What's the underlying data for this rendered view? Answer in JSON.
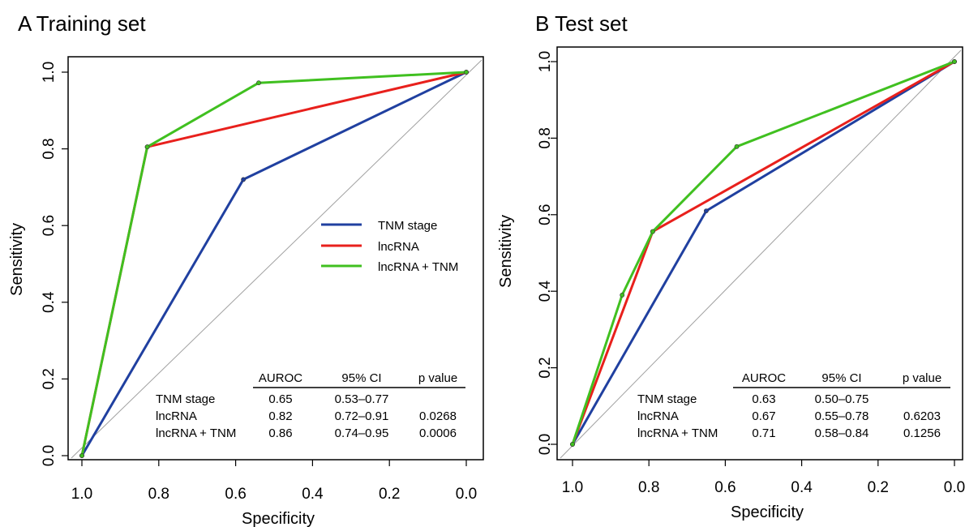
{
  "chart_data": [
    {
      "type": "line",
      "title": "A Training set",
      "xlabel": "Specificity",
      "ylabel": "Sensitivity",
      "xlim": [
        1.0,
        0.0
      ],
      "ylim": [
        0.0,
        1.0
      ],
      "x_ticks": [
        "1.0",
        "0.8",
        "0.6",
        "0.4",
        "0.2",
        "0.0"
      ],
      "y_ticks": [
        "0.0",
        "0.2",
        "0.4",
        "0.6",
        "0.8",
        "1.0"
      ],
      "reference_line": "diagonal",
      "legend": {
        "placement": "right-middle"
      },
      "series": [
        {
          "name": "TNM stage",
          "color": "#2040a0",
          "x": [
            1.0,
            0.58,
            0.0
          ],
          "y": [
            0.0,
            0.72,
            1.0
          ]
        },
        {
          "name": "lncRNA",
          "color": "#e8201c",
          "x": [
            1.0,
            0.83,
            0.0
          ],
          "y": [
            0.0,
            0.805,
            1.0
          ]
        },
        {
          "name": "lncRNA + TNM",
          "color": "#40c020",
          "x": [
            1.0,
            0.83,
            0.54,
            0.0
          ],
          "y": [
            0.0,
            0.805,
            0.972,
            1.0
          ]
        }
      ],
      "table": {
        "columns": [
          "AUROC",
          "95% CI",
          "p value"
        ],
        "rows": [
          {
            "label": "TNM stage",
            "auroc": "0.65",
            "ci": "0.53–0.77",
            "p": ""
          },
          {
            "label": "lncRNA",
            "auroc": "0.82",
            "ci": "0.72–0.91",
            "p": "0.0268"
          },
          {
            "label": "lncRNA + TNM",
            "auroc": "0.86",
            "ci": "0.74–0.95",
            "p": "0.0006"
          }
        ]
      }
    },
    {
      "type": "line",
      "title": "B Test set",
      "xlabel": "Specificity",
      "ylabel": "Sensitivity",
      "xlim": [
        1.0,
        0.0
      ],
      "ylim": [
        0.0,
        1.0
      ],
      "x_ticks": [
        "1.0",
        "0.8",
        "0.6",
        "0.4",
        "0.2",
        "0.0"
      ],
      "y_ticks": [
        "0.0",
        "0.2",
        "0.4",
        "0.6",
        "0.8",
        "1.0"
      ],
      "reference_line": "diagonal",
      "series": [
        {
          "name": "TNM stage",
          "color": "#2040a0",
          "x": [
            1.0,
            0.65,
            0.0
          ],
          "y": [
            0.0,
            0.61,
            1.0
          ]
        },
        {
          "name": "lncRNA",
          "color": "#e8201c",
          "x": [
            1.0,
            0.79,
            0.0
          ],
          "y": [
            0.0,
            0.556,
            1.0
          ]
        },
        {
          "name": "lncRNA + TNM",
          "color": "#40c020",
          "x": [
            1.0,
            0.87,
            0.79,
            0.57,
            0.0
          ],
          "y": [
            0.0,
            0.39,
            0.556,
            0.778,
            1.0
          ]
        }
      ],
      "table": {
        "columns": [
          "AUROC",
          "95% CI",
          "p value"
        ],
        "rows": [
          {
            "label": "TNM stage",
            "auroc": "0.63",
            "ci": "0.50–0.75",
            "p": ""
          },
          {
            "label": "lncRNA",
            "auroc": "0.67",
            "ci": "0.55–0.78",
            "p": "0.6203"
          },
          {
            "label": "lncRNA + TNM",
            "auroc": "0.71",
            "ci": "0.58–0.84",
            "p": "0.1256"
          }
        ]
      }
    }
  ]
}
